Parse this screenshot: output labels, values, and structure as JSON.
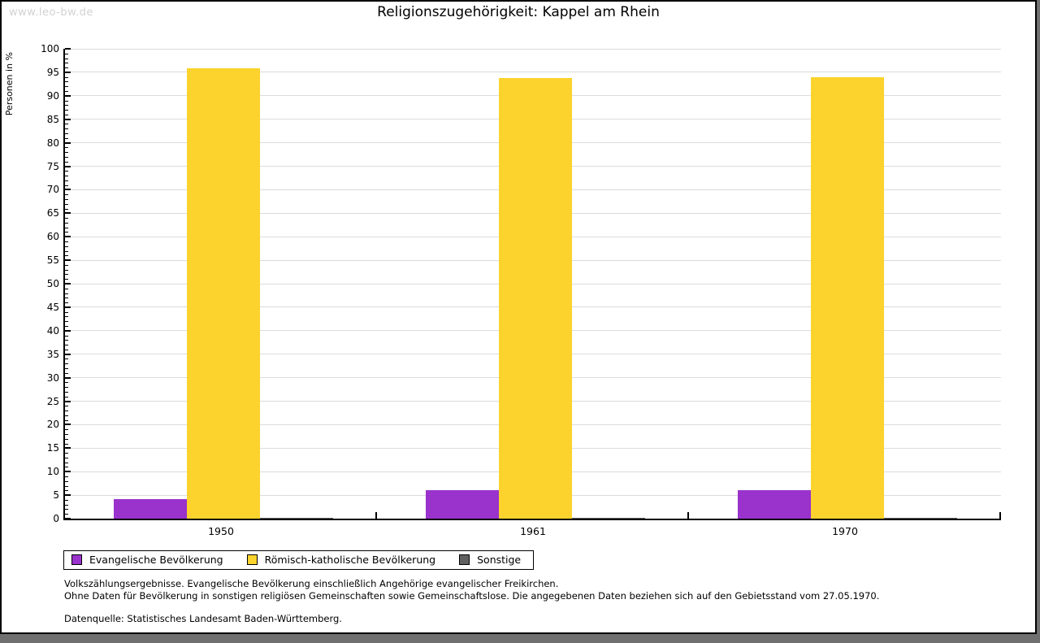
{
  "watermark": "www.leo-bw.de",
  "chart_data": {
    "type": "bar",
    "title": "Religionszugehörigkeit: Kappel am Rhein",
    "ylabel": "Personen in %",
    "ylim": [
      0,
      100
    ],
    "ytick_step": 5,
    "yminor_step": 1,
    "grid": true,
    "legend_position": "bottom-left",
    "categories": [
      "1950",
      "1961",
      "1970"
    ],
    "series": [
      {
        "name": "Evangelische Bevölkerung",
        "color": "#9933cc",
        "values": [
          4.2,
          6.1,
          6.1
        ]
      },
      {
        "name": "Römisch-katholische Bevölkerung",
        "color": "#fcd32d",
        "values": [
          95.9,
          93.8,
          94.0
        ]
      },
      {
        "name": "Sonstige",
        "color": "#5f5f5f",
        "values": [
          0.2,
          0.2,
          0.2
        ]
      }
    ]
  },
  "footnotes": [
    "Volkszählungsergebnisse. Evangelische Bevölkerung einschließlich Angehörige evangelischer Freikirchen.",
    "Ohne Daten für Bevölkerung in sonstigen religiösen Gemeinschaften sowie Gemeinschaftslose. Die angegebenen Daten beziehen sich auf den Gebietsstand vom 27.05.1970.",
    "Datenquelle: Statistisches Landesamt Baden-Württemberg."
  ]
}
